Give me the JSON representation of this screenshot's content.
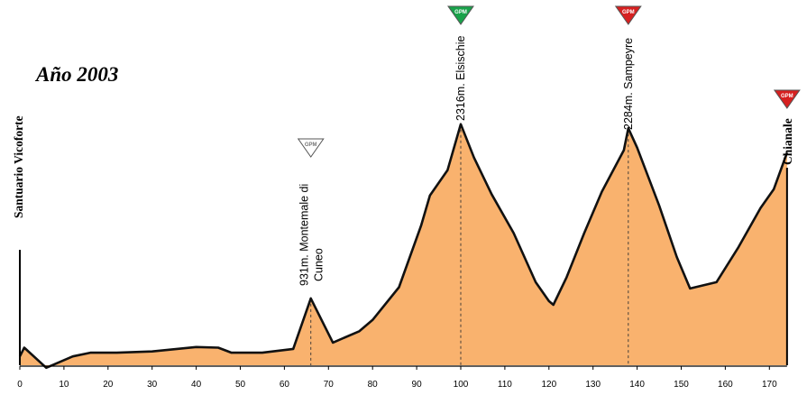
{
  "chart_data": {
    "type": "area",
    "title": "Año 2003",
    "xlabel": "",
    "ylabel": "",
    "xlim": [
      0,
      175
    ],
    "x_ticks": [
      0,
      10,
      20,
      30,
      40,
      50,
      60,
      70,
      80,
      90,
      100,
      110,
      120,
      130,
      140,
      150,
      160,
      170
    ],
    "fill_color": "#f9b26e",
    "line_color": "#111111",
    "profile": {
      "km": [
        0,
        1,
        6,
        12,
        16,
        22,
        30,
        40,
        45,
        48,
        55,
        62,
        66,
        71,
        77,
        80,
        86,
        91,
        93,
        97,
        100,
        103,
        107,
        112,
        117,
        120,
        121,
        124,
        128,
        132,
        137,
        138,
        140,
        145,
        149,
        152,
        158,
        163,
        168,
        171,
        174
      ],
      "alt": [
        470,
        540,
        380,
        470,
        500,
        500,
        510,
        545,
        540,
        500,
        500,
        530,
        931,
        580,
        670,
        760,
        1020,
        1510,
        1750,
        1950,
        2316,
        2050,
        1760,
        1450,
        1060,
        910,
        880,
        1100,
        1450,
        1780,
        2110,
        2284,
        2130,
        1670,
        1260,
        1010,
        1060,
        1340,
        1650,
        1800,
        2090
      ]
    },
    "start": {
      "name": "Santuario Vicoforte",
      "km": 0
    },
    "finish": {
      "name": "Chianale",
      "km": 174,
      "category": "GPM",
      "color": "#d62020"
    },
    "climbs": [
      {
        "km": 66,
        "label": "931m. Montemale di Cuneo",
        "line1": "931m. Montemale di",
        "line2": "Cuneo",
        "category": "GPM",
        "color": "#ffffff"
      },
      {
        "km": 100,
        "label": "2316m. Elsischie",
        "category": "GPM",
        "color": "#19a24a"
      },
      {
        "km": 138,
        "label": "2284m. Sampeyre",
        "category": "GPM",
        "color": "#d62020"
      }
    ]
  }
}
